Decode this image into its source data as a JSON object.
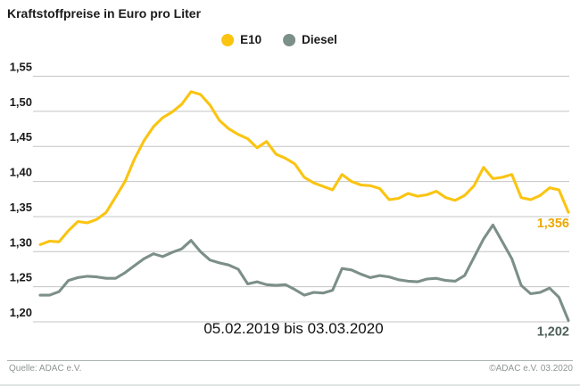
{
  "title": "Kraftstoffpreise in Euro pro Liter",
  "legend": {
    "e10_label": "E10",
    "diesel_label": "Diesel"
  },
  "chart_data": {
    "type": "line",
    "title": "Kraftstoffpreise in Euro pro Liter",
    "x_label": "05.02.2019 bis 03.03.2020",
    "ylim": [
      1.2,
      1.55
    ],
    "grid": true,
    "legend_position": "top-center",
    "y_ticks": [
      "1,55",
      "1,50",
      "1,45",
      "1,40",
      "1,35",
      "1,30",
      "1,25",
      "1,20"
    ],
    "y_tick_values": [
      1.55,
      1.5,
      1.45,
      1.4,
      1.35,
      1.3,
      1.25,
      1.2
    ],
    "x_points_weekly": 57,
    "series": [
      {
        "name": "E10",
        "color": "#fac411",
        "label_color": "#eda900",
        "end_label": "1,356",
        "values": [
          1.31,
          1.315,
          1.314,
          1.33,
          1.343,
          1.341,
          1.346,
          1.356,
          1.378,
          1.4,
          1.432,
          1.458,
          1.478,
          1.491,
          1.499,
          1.51,
          1.528,
          1.524,
          1.509,
          1.487,
          1.475,
          1.467,
          1.461,
          1.448,
          1.457,
          1.439,
          1.433,
          1.425,
          1.406,
          1.398,
          1.393,
          1.388,
          1.41,
          1.4,
          1.395,
          1.394,
          1.39,
          1.374,
          1.376,
          1.383,
          1.379,
          1.381,
          1.386,
          1.377,
          1.373,
          1.38,
          1.394,
          1.42,
          1.404,
          1.406,
          1.41,
          1.377,
          1.374,
          1.38,
          1.391,
          1.388,
          1.356
        ]
      },
      {
        "name": "Diesel",
        "color": "#7c8f89",
        "label_color": "#4d5f5a",
        "end_label": "1,202",
        "values": [
          1.238,
          1.238,
          1.243,
          1.259,
          1.263,
          1.265,
          1.264,
          1.262,
          1.262,
          1.27,
          1.28,
          1.29,
          1.297,
          1.293,
          1.299,
          1.304,
          1.316,
          1.3,
          1.288,
          1.284,
          1.281,
          1.275,
          1.254,
          1.257,
          1.253,
          1.252,
          1.253,
          1.246,
          1.238,
          1.242,
          1.241,
          1.245,
          1.276,
          1.274,
          1.268,
          1.263,
          1.266,
          1.264,
          1.26,
          1.258,
          1.257,
          1.261,
          1.262,
          1.259,
          1.258,
          1.266,
          1.292,
          1.318,
          1.338,
          1.314,
          1.29,
          1.252,
          1.24,
          1.242,
          1.248,
          1.235,
          1.202
        ]
      }
    ]
  },
  "footer": {
    "source": "Quelle: ADAC e.V.",
    "copyright": "©ADAC e.V.  03.2020"
  },
  "colors": {
    "gridline": "#c4c4c4",
    "text_dark": "#1a1a1a",
    "footer_text": "#8e9594"
  }
}
